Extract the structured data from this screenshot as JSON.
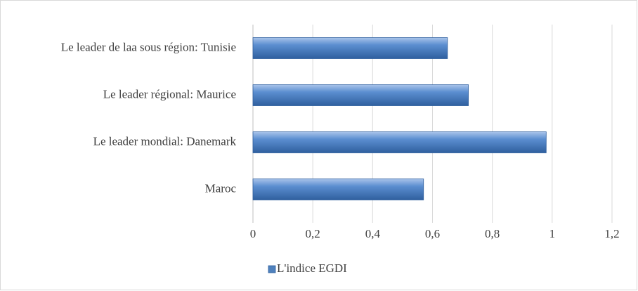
{
  "chart_data": {
    "type": "bar",
    "orientation": "horizontal",
    "categories": [
      "Le leader de laa sous région: Tunisie",
      "Le leader régional: Maurice",
      "Le leader mondial: Danemark",
      "Maroc"
    ],
    "series": [
      {
        "name": "L'indice EGDI",
        "color": "#4f81bd",
        "values": [
          0.65,
          0.72,
          0.98,
          0.57
        ]
      }
    ],
    "xlim": [
      0,
      1.2
    ],
    "xticks": [
      0,
      {
        "value": 0.2,
        "label": "0,2"
      },
      {
        "value": 0.4,
        "label": "0,4"
      },
      {
        "value": 0.6,
        "label": "0,6"
      },
      {
        "value": 0.8,
        "label": "0,8"
      },
      1,
      {
        "value": 1.2,
        "label": "1,2"
      }
    ],
    "grid": true,
    "legend": "bottom"
  }
}
